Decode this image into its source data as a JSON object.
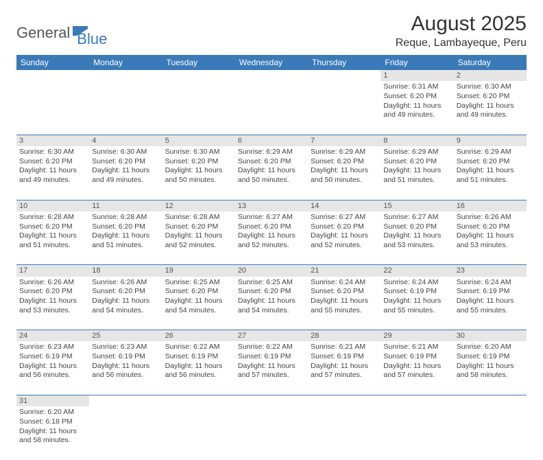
{
  "logo": {
    "part1": "General",
    "part2": "Blue"
  },
  "title": "August 2025",
  "location": "Reque, Lambayeque, Peru",
  "colors": {
    "header_bg": "#3a7ab8",
    "header_fg": "#ffffff",
    "daynum_bg": "#e6e6e6",
    "divider": "#3a7ab8",
    "text": "#444444",
    "logo_gray": "#555555",
    "logo_blue": "#3a7ab8"
  },
  "weekdays": [
    "Sunday",
    "Monday",
    "Tuesday",
    "Wednesday",
    "Thursday",
    "Friday",
    "Saturday"
  ],
  "weeks": [
    [
      null,
      null,
      null,
      null,
      null,
      {
        "n": "1",
        "sr": "Sunrise: 6:31 AM",
        "ss": "Sunset: 6:20 PM",
        "d1": "Daylight: 11 hours",
        "d2": "and 49 minutes."
      },
      {
        "n": "2",
        "sr": "Sunrise: 6:30 AM",
        "ss": "Sunset: 6:20 PM",
        "d1": "Daylight: 11 hours",
        "d2": "and 49 minutes."
      }
    ],
    [
      {
        "n": "3",
        "sr": "Sunrise: 6:30 AM",
        "ss": "Sunset: 6:20 PM",
        "d1": "Daylight: 11 hours",
        "d2": "and 49 minutes."
      },
      {
        "n": "4",
        "sr": "Sunrise: 6:30 AM",
        "ss": "Sunset: 6:20 PM",
        "d1": "Daylight: 11 hours",
        "d2": "and 49 minutes."
      },
      {
        "n": "5",
        "sr": "Sunrise: 6:30 AM",
        "ss": "Sunset: 6:20 PM",
        "d1": "Daylight: 11 hours",
        "d2": "and 50 minutes."
      },
      {
        "n": "6",
        "sr": "Sunrise: 6:29 AM",
        "ss": "Sunset: 6:20 PM",
        "d1": "Daylight: 11 hours",
        "d2": "and 50 minutes."
      },
      {
        "n": "7",
        "sr": "Sunrise: 6:29 AM",
        "ss": "Sunset: 6:20 PM",
        "d1": "Daylight: 11 hours",
        "d2": "and 50 minutes."
      },
      {
        "n": "8",
        "sr": "Sunrise: 6:29 AM",
        "ss": "Sunset: 6:20 PM",
        "d1": "Daylight: 11 hours",
        "d2": "and 51 minutes."
      },
      {
        "n": "9",
        "sr": "Sunrise: 6:29 AM",
        "ss": "Sunset: 6:20 PM",
        "d1": "Daylight: 11 hours",
        "d2": "and 51 minutes."
      }
    ],
    [
      {
        "n": "10",
        "sr": "Sunrise: 6:28 AM",
        "ss": "Sunset: 6:20 PM",
        "d1": "Daylight: 11 hours",
        "d2": "and 51 minutes."
      },
      {
        "n": "11",
        "sr": "Sunrise: 6:28 AM",
        "ss": "Sunset: 6:20 PM",
        "d1": "Daylight: 11 hours",
        "d2": "and 51 minutes."
      },
      {
        "n": "12",
        "sr": "Sunrise: 6:28 AM",
        "ss": "Sunset: 6:20 PM",
        "d1": "Daylight: 11 hours",
        "d2": "and 52 minutes."
      },
      {
        "n": "13",
        "sr": "Sunrise: 6:27 AM",
        "ss": "Sunset: 6:20 PM",
        "d1": "Daylight: 11 hours",
        "d2": "and 52 minutes."
      },
      {
        "n": "14",
        "sr": "Sunrise: 6:27 AM",
        "ss": "Sunset: 6:20 PM",
        "d1": "Daylight: 11 hours",
        "d2": "and 52 minutes."
      },
      {
        "n": "15",
        "sr": "Sunrise: 6:27 AM",
        "ss": "Sunset: 6:20 PM",
        "d1": "Daylight: 11 hours",
        "d2": "and 53 minutes."
      },
      {
        "n": "16",
        "sr": "Sunrise: 6:26 AM",
        "ss": "Sunset: 6:20 PM",
        "d1": "Daylight: 11 hours",
        "d2": "and 53 minutes."
      }
    ],
    [
      {
        "n": "17",
        "sr": "Sunrise: 6:26 AM",
        "ss": "Sunset: 6:20 PM",
        "d1": "Daylight: 11 hours",
        "d2": "and 53 minutes."
      },
      {
        "n": "18",
        "sr": "Sunrise: 6:26 AM",
        "ss": "Sunset: 6:20 PM",
        "d1": "Daylight: 11 hours",
        "d2": "and 54 minutes."
      },
      {
        "n": "19",
        "sr": "Sunrise: 6:25 AM",
        "ss": "Sunset: 6:20 PM",
        "d1": "Daylight: 11 hours",
        "d2": "and 54 minutes."
      },
      {
        "n": "20",
        "sr": "Sunrise: 6:25 AM",
        "ss": "Sunset: 6:20 PM",
        "d1": "Daylight: 11 hours",
        "d2": "and 54 minutes."
      },
      {
        "n": "21",
        "sr": "Sunrise: 6:24 AM",
        "ss": "Sunset: 6:20 PM",
        "d1": "Daylight: 11 hours",
        "d2": "and 55 minutes."
      },
      {
        "n": "22",
        "sr": "Sunrise: 6:24 AM",
        "ss": "Sunset: 6:19 PM",
        "d1": "Daylight: 11 hours",
        "d2": "and 55 minutes."
      },
      {
        "n": "23",
        "sr": "Sunrise: 6:24 AM",
        "ss": "Sunset: 6:19 PM",
        "d1": "Daylight: 11 hours",
        "d2": "and 55 minutes."
      }
    ],
    [
      {
        "n": "24",
        "sr": "Sunrise: 6:23 AM",
        "ss": "Sunset: 6:19 PM",
        "d1": "Daylight: 11 hours",
        "d2": "and 56 minutes."
      },
      {
        "n": "25",
        "sr": "Sunrise: 6:23 AM",
        "ss": "Sunset: 6:19 PM",
        "d1": "Daylight: 11 hours",
        "d2": "and 56 minutes."
      },
      {
        "n": "26",
        "sr": "Sunrise: 6:22 AM",
        "ss": "Sunset: 6:19 PM",
        "d1": "Daylight: 11 hours",
        "d2": "and 56 minutes."
      },
      {
        "n": "27",
        "sr": "Sunrise: 6:22 AM",
        "ss": "Sunset: 6:19 PM",
        "d1": "Daylight: 11 hours",
        "d2": "and 57 minutes."
      },
      {
        "n": "28",
        "sr": "Sunrise: 6:21 AM",
        "ss": "Sunset: 6:19 PM",
        "d1": "Daylight: 11 hours",
        "d2": "and 57 minutes."
      },
      {
        "n": "29",
        "sr": "Sunrise: 6:21 AM",
        "ss": "Sunset: 6:19 PM",
        "d1": "Daylight: 11 hours",
        "d2": "and 57 minutes."
      },
      {
        "n": "30",
        "sr": "Sunrise: 6:20 AM",
        "ss": "Sunset: 6:19 PM",
        "d1": "Daylight: 11 hours",
        "d2": "and 58 minutes."
      }
    ],
    [
      {
        "n": "31",
        "sr": "Sunrise: 6:20 AM",
        "ss": "Sunset: 6:18 PM",
        "d1": "Daylight: 11 hours",
        "d2": "and 58 minutes."
      },
      null,
      null,
      null,
      null,
      null,
      null
    ]
  ]
}
